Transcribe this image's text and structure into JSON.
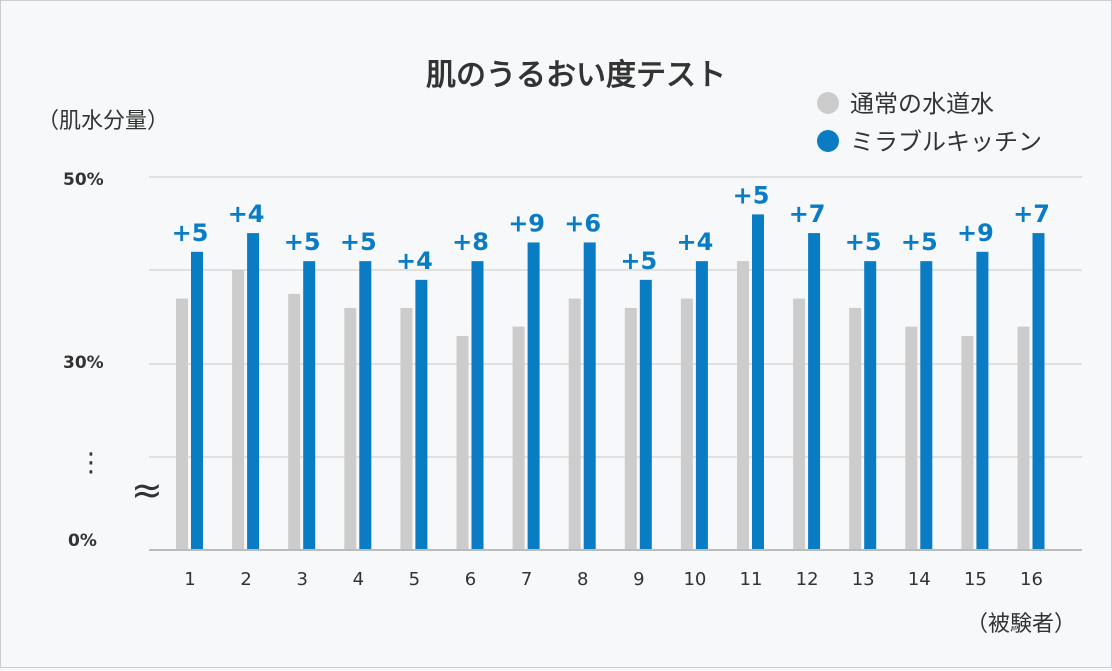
{
  "chart_data": {
    "type": "bar",
    "title": "肌のうるおい度テスト",
    "ylabel": "（肌水分量）",
    "xlabel": "（被験者）",
    "categories": [
      "1",
      "2",
      "3",
      "4",
      "5",
      "6",
      "7",
      "8",
      "9",
      "10",
      "11",
      "12",
      "13",
      "14",
      "15",
      "16"
    ],
    "series": [
      {
        "name": "通常の水道水",
        "color": "#cccccc",
        "values": [
          37,
          40,
          37.5,
          36,
          36,
          33,
          34,
          37,
          36,
          37,
          41,
          37,
          36,
          34,
          33,
          34
        ]
      },
      {
        "name": "ミラブルキッチン",
        "color": "#0a7cc4",
        "values": [
          42,
          44,
          41,
          41,
          39,
          41,
          43,
          43,
          39,
          41,
          46,
          44,
          41,
          41,
          42,
          44
        ]
      }
    ],
    "data_labels": [
      "+5",
      "+4",
      "+5",
      "+5",
      "+4",
      "+8",
      "+9",
      "+6",
      "+5",
      "+4",
      "+5",
      "+7",
      "+5",
      "+5",
      "+9",
      "+7"
    ],
    "y_ticks": [
      "50%",
      "30%",
      "0%"
    ],
    "y_break_symbols": [
      "⋮",
      "≈"
    ],
    "ylim": [
      0,
      50
    ],
    "grid": true,
    "legend_position": "top-right"
  }
}
